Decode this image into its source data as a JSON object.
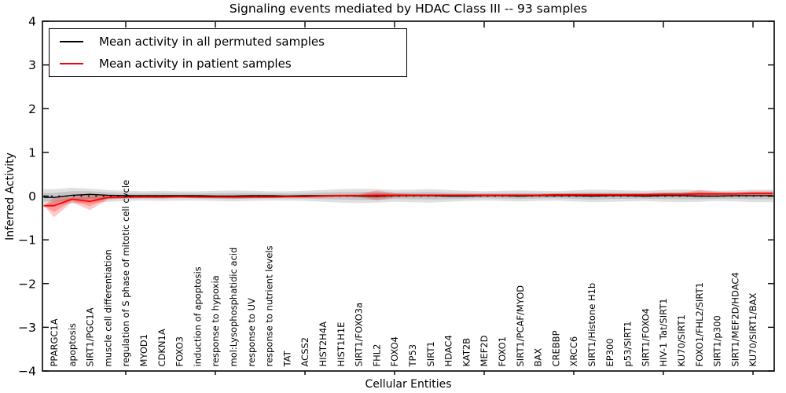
{
  "chart_data": {
    "type": "line",
    "title": "Signaling events mediated by HDAC Class III -- 93 samples",
    "xlabel": "Cellular Entities",
    "ylabel": "Inferred Activity",
    "ylim": [
      -4,
      4
    ],
    "yticks": [
      4,
      3,
      2,
      1,
      0,
      -1,
      -2,
      -3,
      -4
    ],
    "x_major_tick_every": 5,
    "grid": false,
    "legend_position": "upper left",
    "zero_line": {
      "style": "dashed",
      "color": "#000000"
    },
    "categories": [
      "PPARGC1A",
      "apoptosis",
      "SIRT1/PGC1A",
      "muscle cell differentiation",
      "regulation of S phase of mitotic cell cycle",
      "MYOD1",
      "CDKN1A",
      "FOXO3",
      "induction of apoptosis",
      "response to hypoxia",
      "mol:Lysophosphatidic acid",
      "response to UV",
      "response to nutrient levels",
      "TAT",
      "ACSS2",
      "HIST2H4A",
      "HIST1H1E",
      "SIRT1/FOXO3a",
      "FHL2",
      "FOXO4",
      "TP53",
      "SIRT1",
      "HDAC4",
      "KAT2B",
      "MEF2D",
      "FOXO1",
      "SIRT1/PCAF/MYOD",
      "BAX",
      "CREBBP",
      "XRCC6",
      "SIRT1/Histone H1b",
      "EP300",
      "p53/SIRT1",
      "SIRT1/FOXO4",
      "HIV-1 Tat/SIRT1",
      "KU70/SIRT1",
      "FOXO1/FHL2/SIRT1",
      "SIRT1/p300",
      "SIRT1/MEF2D/HDAC4",
      "KU70/SIRT1/BAX"
    ],
    "series": [
      {
        "name": "Mean activity in all permuted samples",
        "color": "#000000",
        "band_color": "rgba(0,0,0,0.12)",
        "pinch_band_left": false,
        "values": [
          -0.03,
          0.02,
          0.04,
          0.02,
          0.01,
          0.01,
          0.01,
          0.01,
          0.01,
          0.0,
          0.0,
          0.01,
          0.01,
          0.0,
          0.01,
          0.01,
          0.01,
          0.0,
          0.0,
          0.01,
          0.01,
          0.01,
          0.0,
          0.0,
          0.01,
          0.01,
          0.0,
          0.01,
          0.01,
          0.01,
          0.0,
          0.01,
          0.01,
          0.0,
          0.01,
          0.01,
          0.0,
          0.0,
          0.01,
          0.01
        ],
        "band_upper": [
          0.16,
          0.19,
          0.17,
          0.14,
          0.12,
          0.11,
          0.12,
          0.11,
          0.11,
          0.12,
          0.13,
          0.12,
          0.11,
          0.11,
          0.12,
          0.14,
          0.16,
          0.17,
          0.16,
          0.14,
          0.15,
          0.16,
          0.14,
          0.12,
          0.11,
          0.12,
          0.13,
          0.12,
          0.11,
          0.13,
          0.15,
          0.14,
          0.13,
          0.12,
          0.14,
          0.15,
          0.14,
          0.12,
          0.13,
          0.15
        ],
        "band_lower": [
          -0.2,
          -0.17,
          -0.15,
          -0.13,
          -0.11,
          -0.1,
          -0.11,
          -0.1,
          -0.1,
          -0.11,
          -0.12,
          -0.11,
          -0.1,
          -0.1,
          -0.11,
          -0.13,
          -0.15,
          -0.16,
          -0.15,
          -0.13,
          -0.14,
          -0.15,
          -0.13,
          -0.11,
          -0.1,
          -0.11,
          -0.12,
          -0.11,
          -0.1,
          -0.12,
          -0.14,
          -0.13,
          -0.12,
          -0.11,
          -0.13,
          -0.14,
          -0.13,
          -0.11,
          -0.12,
          -0.14
        ]
      },
      {
        "name": "Mean activity in patient samples",
        "color": "#ff0000",
        "band_color": "rgba(255,0,0,0.22)",
        "pinch_band_left": true,
        "values": [
          -0.22,
          -0.07,
          -0.12,
          -0.03,
          -0.02,
          -0.02,
          -0.02,
          -0.01,
          -0.02,
          -0.02,
          -0.02,
          -0.02,
          -0.02,
          -0.01,
          -0.01,
          0.0,
          0.01,
          0.01,
          0.02,
          0.02,
          0.02,
          0.02,
          0.02,
          0.02,
          0.02,
          0.02,
          0.02,
          0.02,
          0.03,
          0.03,
          0.03,
          0.03,
          0.03,
          0.03,
          0.04,
          0.04,
          0.05,
          0.05,
          0.05,
          0.06
        ],
        "band_upper": [
          -0.03,
          -0.01,
          0.06,
          0.01,
          0.01,
          0.01,
          0.01,
          0.02,
          0.01,
          0.01,
          0.01,
          0.01,
          0.01,
          0.02,
          0.02,
          0.03,
          0.04,
          0.05,
          0.13,
          0.07,
          0.05,
          0.05,
          0.05,
          0.05,
          0.05,
          0.05,
          0.05,
          0.05,
          0.06,
          0.06,
          0.06,
          0.06,
          0.06,
          0.07,
          0.08,
          0.08,
          0.13,
          0.1,
          0.09,
          0.11
        ],
        "band_lower": [
          -0.48,
          -0.14,
          -0.32,
          -0.08,
          -0.06,
          -0.05,
          -0.05,
          -0.04,
          -0.05,
          -0.05,
          -0.06,
          -0.05,
          -0.05,
          -0.04,
          -0.04,
          -0.03,
          -0.02,
          -0.02,
          -0.1,
          -0.03,
          -0.01,
          -0.01,
          -0.01,
          -0.01,
          -0.01,
          -0.01,
          -0.01,
          -0.01,
          0.0,
          0.0,
          0.0,
          0.0,
          0.0,
          0.0,
          0.01,
          0.01,
          -0.02,
          0.01,
          0.02,
          0.02
        ]
      }
    ]
  }
}
